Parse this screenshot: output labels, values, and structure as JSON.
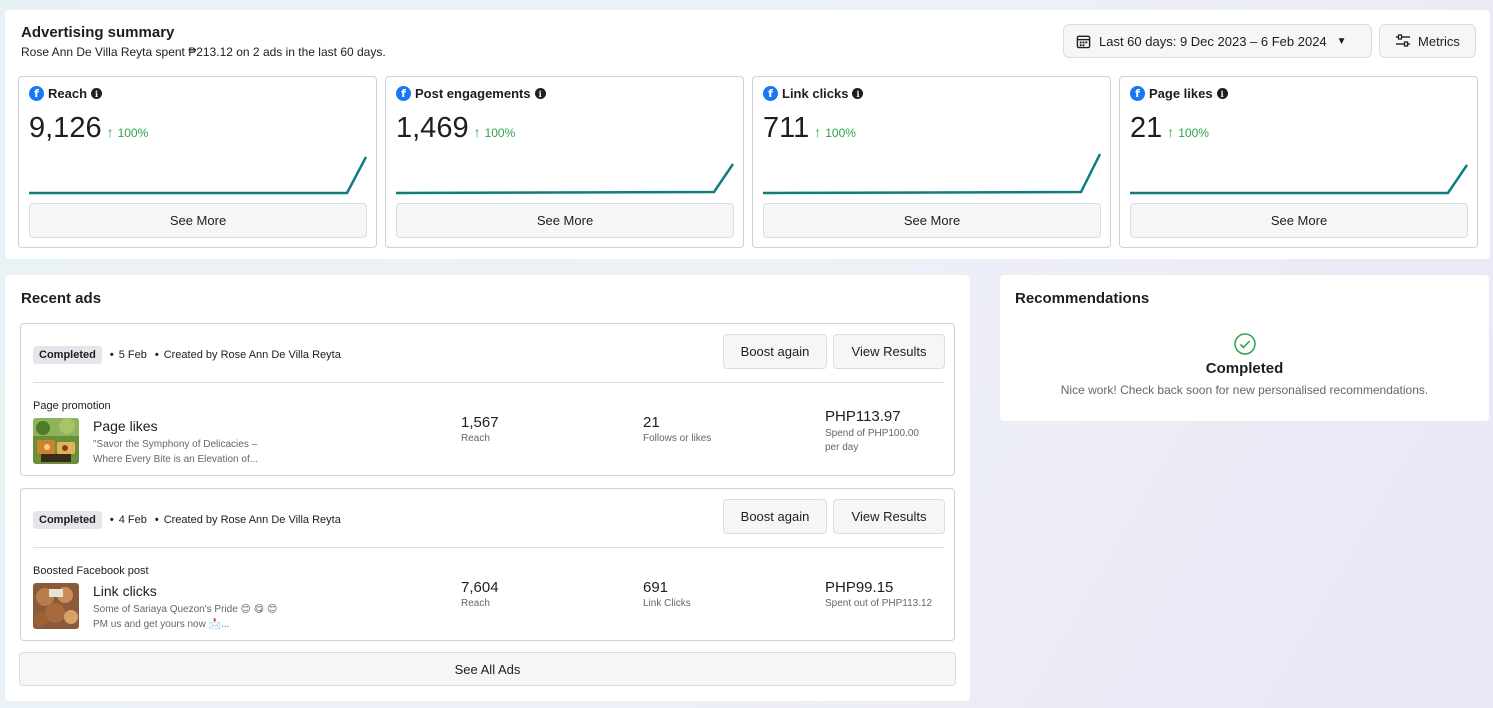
{
  "summary": {
    "title": "Advertising summary",
    "subtitle": "Rose Ann De Villa Reyta spent ₱213.12 on 2 ads in the last 60 days.",
    "date_range": "Last 60 days: 9 Dec 2023 – 6 Feb 2024",
    "metrics_label": "Metrics",
    "see_more_label": "See More",
    "cards": [
      {
        "label": "Reach",
        "value": "9,126",
        "change": "100%"
      },
      {
        "label": "Post engagements",
        "value": "1,469",
        "change": "100%"
      },
      {
        "label": "Link clicks",
        "value": "711",
        "change": "100%"
      },
      {
        "label": "Page likes",
        "value": "21",
        "change": "100%"
      }
    ]
  },
  "recent": {
    "title": "Recent ads",
    "boost_label": "Boost again",
    "view_label": "View Results",
    "see_all_label": "See All Ads",
    "ads": [
      {
        "status": "Completed",
        "date": "5 Feb",
        "creator": "Created by Rose Ann De Villa Reyta",
        "type": "Page promotion",
        "name": "Page likes",
        "desc_line1": "\"Savor the Symphony of Delicacies –",
        "desc_line2": "Where Every Bite is an Elevation of...",
        "stat1_value": "1,567",
        "stat1_label": "Reach",
        "stat2_value": "21",
        "stat2_label": "Follows or likes",
        "spend_value": "PHP113.97",
        "spend_label": "Spend of PHP100.00 per day"
      },
      {
        "status": "Completed",
        "date": "4 Feb",
        "creator": "Created by Rose Ann De Villa Reyta",
        "type": "Boosted Facebook post",
        "name": "Link clicks",
        "desc_line1": "Some of Sariaya Quezon's Pride 😊 😋 😊",
        "desc_line2": "PM us and get yours now 📩...",
        "stat1_value": "7,604",
        "stat1_label": "Reach",
        "stat2_value": "691",
        "stat2_label": "Link Clicks",
        "spend_value": "PHP99.15",
        "spend_label": "Spent out of PHP113.12"
      }
    ]
  },
  "recommendations": {
    "title": "Recommendations",
    "status": "Completed",
    "message": "Nice work! Check back soon for new personalised recommendations."
  }
}
